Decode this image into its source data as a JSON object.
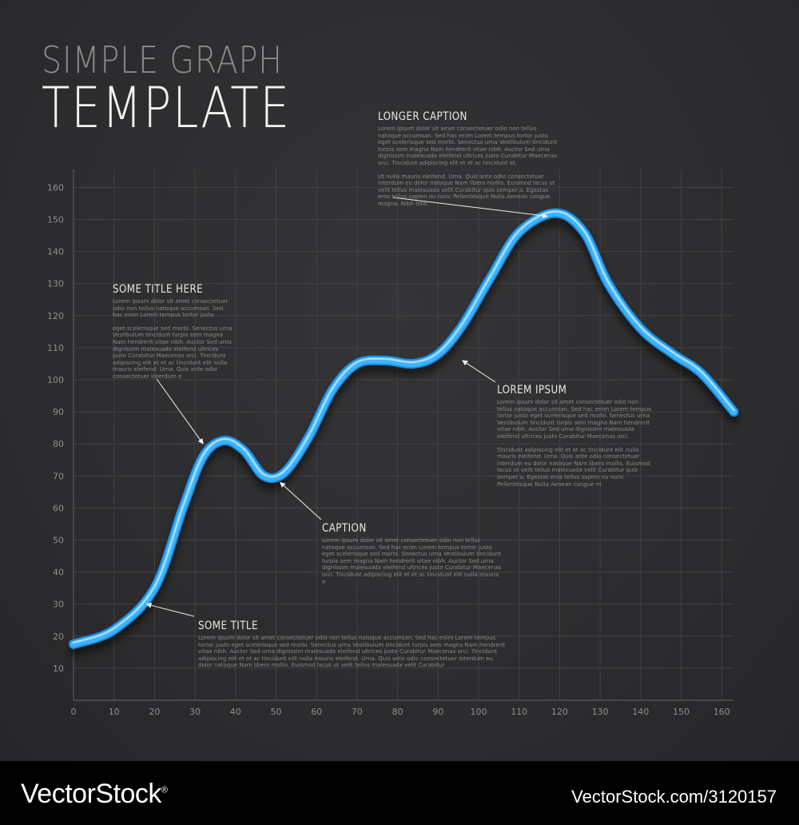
{
  "title": {
    "line1": "SIMPLE GRAPH",
    "line2": "TEMPLATE"
  },
  "chart_data": {
    "type": "line",
    "title": "SIMPLE GRAPH TEMPLATE",
    "xlabel": "",
    "ylabel": "",
    "xlim": [
      0,
      163
    ],
    "ylim": [
      0,
      165
    ],
    "x_ticks": [
      0,
      10,
      20,
      30,
      40,
      50,
      60,
      70,
      80,
      90,
      100,
      110,
      120,
      130,
      140,
      150,
      160
    ],
    "y_ticks": [
      10,
      20,
      30,
      40,
      50,
      60,
      70,
      80,
      90,
      100,
      110,
      120,
      130,
      140,
      150,
      160
    ],
    "grid": true,
    "line_color": "#3fb3ff",
    "series": [
      {
        "name": "",
        "x": [
          0,
          10,
          20,
          27,
          32,
          37,
          42,
          47,
          52,
          58,
          64,
          70,
          77,
          84,
          90,
          96,
          103,
          110,
          119,
          126,
          132,
          140,
          148,
          155,
          163
        ],
        "y": [
          17.5,
          22,
          35,
          60,
          76,
          81,
          78,
          70,
          71,
          82,
          97,
          105,
          106,
          105,
          108,
          117,
          132,
          146,
          152,
          146,
          130,
          116,
          108,
          102,
          90
        ]
      }
    ],
    "annotations": [
      {
        "title": "LONGER CAPTION",
        "x": 117,
        "y": 151,
        "text": [
          "Lorem ipsum dolor sit amet consectetuer odio non tellus natoque accumsan. Sed hac enim Lorem tempus tortor justo eget scelerisque sed morbi. Senectus urna Vestibulum tincidunt turpis sem magna Nam hendrerit vitae nibh. Auctor Sed urna dignissim malesuada eleifend ultrices justo Curabitur Maecenas orci. Tincidunt adipiscing elit et et ac tincidunt et.",
          "Ut nulla mauris eleifend. Urna. Quis ante odio consectetuer interdum eu dolor natoque Nam libero mollis. Euismod lacus ut velit tellus malesuada velit Curabitur quis semper a. Egestas eros tellus sapien eu nunc Pellentesque Nulla Aenean congue magna. Nibh felis."
        ]
      },
      {
        "title": "SOME TITLE HERE",
        "x": 32,
        "y": 80,
        "text": [
          "Lorem ipsum dolor sit amet consectetuer odio non tellus natoque accumsan. Sed hac enim Lorem tempus tortor justo",
          "eget scelerisque sed morbi. Senectus urna Vestibulum tincidunt turpis sem magna Nam hendrerit vitae nibh. Auctor Sed urna dignissim malesuada eleifend ultrices justo Curabitur Maecenas orci. Tincidunt adipiscing elit et et ac tincidunt elit nulla mauris eleifend. Urna. Quis ante odio consectetuer interdum e"
        ]
      },
      {
        "title": "LOREM IPSUM",
        "x": 96,
        "y": 106,
        "text": [
          "Lorem ipsum dolor sit amet consectetuer odio non tellus natoque accumsan. Sed hac enim Lorem tempus tortor justo eget scelerisque sed morbi. Senectus urna Vestibulum tincidunt turpis sem magna Nam hendrerit vitae nibh. Auctor Sed urna dignissim malesuada eleifend ultrices justo Curabitur Maecenas orci.",
          "Tincidunt adipiscing elit et et ac tincidunt elit nulla mauris eleifend. Urna. Quis ante odio consectetuer interdum eu dolor natoque Nam libero mollis. Euismod lacus ut velit tellus malesuada velit Curabitur quis semper a. Egestas eros tellus sapien eu nunc Pellentesque Nulla Aenean congue m"
        ]
      },
      {
        "title": "CAPTION",
        "x": 51,
        "y": 68,
        "text": [
          "Lorem ipsum dolor sit amet consectetuer odio non tellus natoque accumsan. Sed hac enim Lorem tempus tortor justo eget scelerisque sed morbi. Senectus urna Vestibulum tincidunt turpis sem magna Nam hendrerit vitae nibh. Auctor Sed urna dignissim malesuada eleifend ultrices justo Curabitur Maecenas orci. Tincidunt adipiscing elit et et ac tincidunt elit nulla mauris e"
        ]
      },
      {
        "title": "SOME TITLE",
        "x": 18,
        "y": 30,
        "text": [
          "Lorem ipsum dolor sit amet consectetuer odio non tellus natoque accumsan. Sed hac enim Lorem tempus tortor justo eget scelerisque sed morbi. Senectus urna Vestibulum tincidunt turpis sem magna Nam hendrerit vitae nibh. Auctor Sed urna dignissim malesuada eleifend ultrices justo Curabitur Maecenas orci. Tincidunt adipiscing elit et et ac tincidunt elit nulla mauris eleifend. Urna. Quis ante odio consectetuer interdum eu dolor natoque Nam libero mollis. Euismod lacus ut velit tellus malesuada velit Curabitur"
        ]
      }
    ]
  },
  "footer": {
    "brand": "VectorStock",
    "id": "VectorStock.com/3120157",
    "brand_mark": "®"
  }
}
